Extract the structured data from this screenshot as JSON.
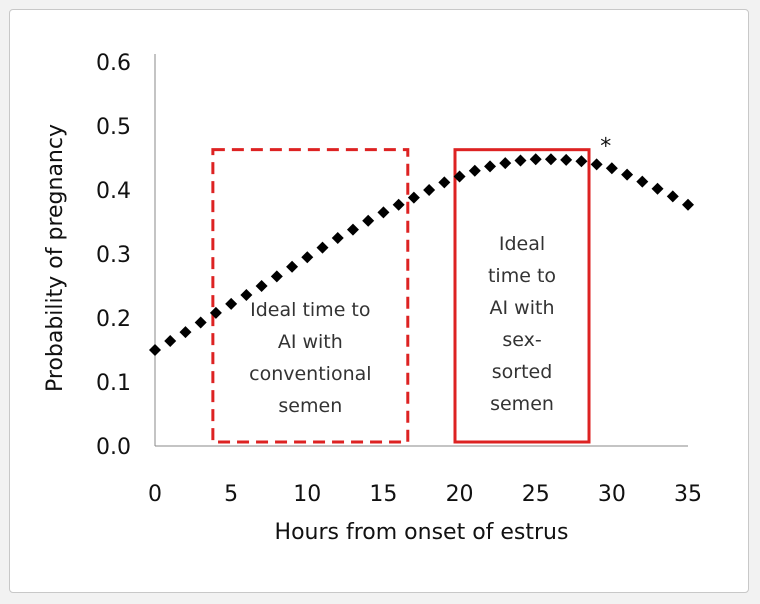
{
  "chart_data": {
    "type": "scatter",
    "title": "",
    "xlabel": "Hours from onset of estrus",
    "ylabel": "Probability of pregnancy",
    "xlim": [
      0,
      35
    ],
    "ylim": [
      0.0,
      0.6
    ],
    "x_ticks": [
      "0",
      "5",
      "10",
      "15",
      "20",
      "25",
      "30",
      "35"
    ],
    "y_ticks": [
      "0.0",
      "0.1",
      "0.2",
      "0.3",
      "0.4",
      "0.5",
      "0.6"
    ],
    "grid": false,
    "marker_color": "#000000",
    "series": [
      {
        "marker": "diamond",
        "x": [
          0,
          1,
          2,
          3,
          4,
          5,
          6,
          7,
          8,
          9,
          10,
          11,
          12,
          13,
          14,
          15,
          16,
          17,
          18,
          19,
          20,
          21,
          22,
          23,
          24,
          25,
          26,
          27,
          28,
          29,
          30,
          31,
          32,
          33,
          34,
          35
        ],
        "y": [
          0.15,
          0.164,
          0.178,
          0.193,
          0.208,
          0.222,
          0.236,
          0.25,
          0.265,
          0.28,
          0.295,
          0.31,
          0.325,
          0.338,
          0.352,
          0.365,
          0.377,
          0.388,
          0.4,
          0.412,
          0.421,
          0.43,
          0.437,
          0.442,
          0.446,
          0.448,
          0.448,
          0.447,
          0.445,
          0.44,
          0.434,
          0.424,
          0.413,
          0.402,
          0.39,
          0.377
        ]
      }
    ],
    "annotations": [
      {
        "kind": "box",
        "style": "dashed",
        "color": "#dd2222",
        "x_range": [
          3.8,
          16.6
        ],
        "y_range": [
          0.0,
          0.463
        ],
        "text_lines": [
          "Ideal time to",
          "AI with",
          "conventional",
          "semen"
        ]
      },
      {
        "kind": "box",
        "style": "solid",
        "color": "#dd2222",
        "x_range": [
          19.7,
          28.5
        ],
        "y_range": [
          0.0,
          0.463
        ],
        "text_lines": [
          "Ideal",
          "time to",
          "AI with",
          "sex-",
          "sorted",
          "semen"
        ]
      },
      {
        "kind": "text",
        "text": "*",
        "x": 29.6,
        "y": 0.473
      }
    ]
  }
}
